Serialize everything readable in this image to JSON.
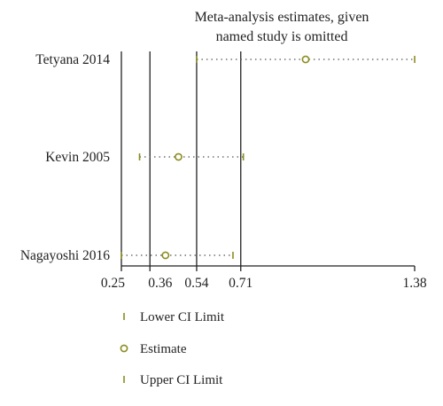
{
  "chart_data": {
    "type": "scatter",
    "title": [
      "Meta-analysis estimates, given",
      "named study is omitted"
    ],
    "studies": [
      {
        "name": "Tetyana 2014",
        "lower": 0.54,
        "estimate": 0.96,
        "upper": 1.38
      },
      {
        "name": "Kevin 2005",
        "lower": 0.32,
        "estimate": 0.47,
        "upper": 0.72
      },
      {
        "name": "Nagayoshi 2016",
        "lower": 0.25,
        "estimate": 0.42,
        "upper": 0.68
      }
    ],
    "x_ticks": [
      0.25,
      0.36,
      0.54,
      0.71,
      1.38
    ],
    "x_tick_labels": [
      "0.25",
      "0.36",
      "0.54",
      "0.71",
      "1.38"
    ],
    "reference_lines": [
      0.25,
      0.36,
      0.54,
      0.71
    ],
    "xlim": [
      0.25,
      1.38
    ],
    "legend": [
      {
        "marker": "tick",
        "label": "Lower CI Limit"
      },
      {
        "marker": "circle",
        "label": "Estimate"
      },
      {
        "marker": "tick",
        "label": "Upper CI Limit"
      }
    ],
    "legend_position": "bottom",
    "grid": false,
    "colors": {
      "marker": "#8c8c1e",
      "axis": "#222222",
      "dots": "#555555"
    }
  }
}
